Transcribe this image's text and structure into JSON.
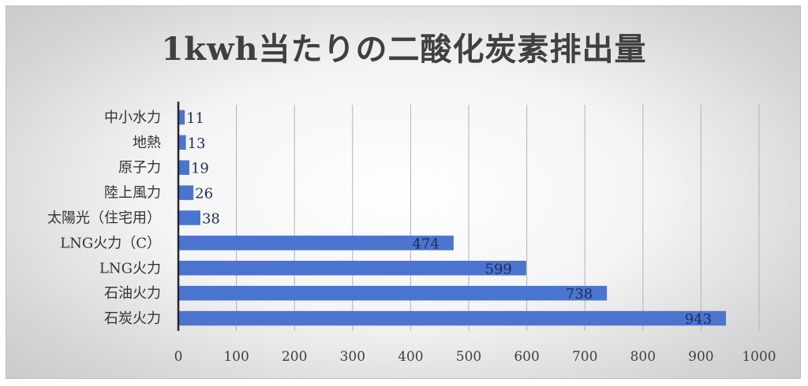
{
  "chart_data": {
    "type": "bar",
    "orientation": "horizontal",
    "title": "1kwh当たりの二酸化炭素排出量",
    "categories": [
      "中小水力",
      "地熱",
      "原子力",
      "陸上風力",
      "太陽光（住宅用）",
      "LNG火力（C）",
      "LNG火力",
      "石油火力",
      "石炭火力"
    ],
    "values": [
      11,
      13,
      19,
      26,
      38,
      474,
      599,
      738,
      943
    ],
    "data_labels": [
      "11",
      "13",
      "19",
      "26",
      "38",
      "474",
      "599",
      "738",
      "943"
    ],
    "xlim": [
      0,
      1000
    ],
    "ticks": [
      0,
      100,
      200,
      300,
      400,
      500,
      600,
      700,
      800,
      900,
      1000
    ],
    "tick_labels": [
      "0",
      "100",
      "200",
      "300",
      "400",
      "500",
      "600",
      "700",
      "800",
      "900",
      "1000"
    ],
    "grid": "vertical",
    "legend": "none",
    "bar_color": "#4a74cf"
  }
}
